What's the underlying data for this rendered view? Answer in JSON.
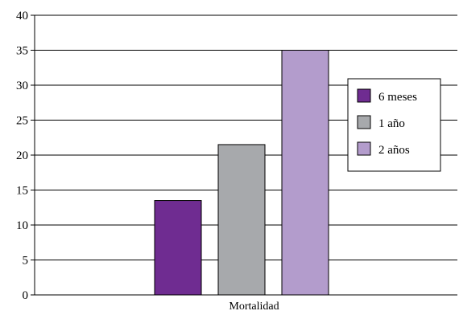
{
  "chart_data": {
    "type": "bar",
    "categories": [
      "Mortalidad"
    ],
    "series": [
      {
        "name": "6 meses",
        "values": [
          13.5
        ],
        "color": "#6f2c91"
      },
      {
        "name": "1 año",
        "values": [
          21.5
        ],
        "color": "#a7a9ac"
      },
      {
        "name": "2 años",
        "values": [
          35
        ],
        "color": "#b39ccc"
      }
    ],
    "yticks": [
      "0",
      "5",
      "10",
      "15",
      "20",
      "25",
      "30",
      "35",
      "40"
    ],
    "ylim": [
      0,
      40
    ],
    "grid": true,
    "legend": "right"
  }
}
